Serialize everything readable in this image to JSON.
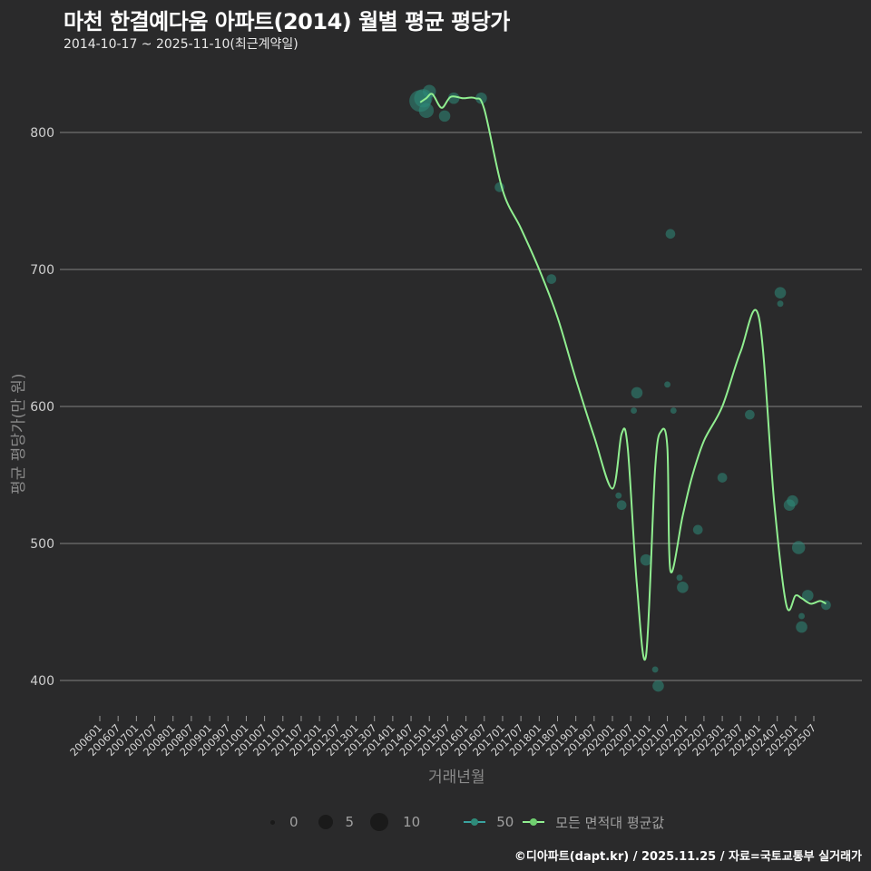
{
  "header": {
    "title": "마천 한결예다움 아파트(2014) 월별 평균 평당가",
    "subtitle": "2014-10-17 ~ 2025-11-10(최근계약일)"
  },
  "axes": {
    "ylabel": "평균 평당가(만 원)",
    "xlabel": "거래년월"
  },
  "legend": {
    "size_labels": [
      "0",
      "5",
      "10"
    ],
    "series_label_50": "50",
    "series_label_all": "모든 면적대 평균값"
  },
  "caption": "©디아파트(dapt.kr) / 2025.11.25 / 자료=국토교통부 실거래가",
  "colors": {
    "background": "#2a2a2b",
    "grid": "#707070",
    "points": "#2e8b7a",
    "line_all": "#90ee90",
    "line_50": "#3aa3a0"
  },
  "chart_data": {
    "type": "line",
    "title": "마천 한결예다움 아파트(2014) 월별 평균 평당가",
    "subtitle": "2014-10-17 ~ 2025-11-10(최근계약일)",
    "xlabel": "거래년월",
    "ylabel": "평균 평당가(만 원)",
    "ylim": [
      370,
      840
    ],
    "yticks": [
      400,
      500,
      600,
      700,
      800
    ],
    "grid": true,
    "legend_position": "bottom",
    "x_tick_labels": [
      "200601",
      "200607",
      "200701",
      "200707",
      "200801",
      "200807",
      "200901",
      "200907",
      "201001",
      "201007",
      "201101",
      "201107",
      "201201",
      "201207",
      "201301",
      "201307",
      "201401",
      "201407",
      "201501",
      "201507",
      "201601",
      "201607",
      "201701",
      "201707",
      "201801",
      "201807",
      "201901",
      "201907",
      "202001",
      "202007",
      "202101",
      "202107",
      "202201",
      "202207",
      "202301",
      "202307",
      "202401",
      "202407",
      "202501",
      "202507"
    ],
    "series": [
      {
        "name": "모든 면적대 평균값",
        "type": "line",
        "x": [
          "201410",
          "201412",
          "201502",
          "201505",
          "201508",
          "201512",
          "201604",
          "201607",
          "201701",
          "201707",
          "201801",
          "201807",
          "201901",
          "201907",
          "202001",
          "202004",
          "202006",
          "202009",
          "202012",
          "202103",
          "202105",
          "202107",
          "202108",
          "202112",
          "202203",
          "202207",
          "202301",
          "202307",
          "202401",
          "202406",
          "202410",
          "202501",
          "202503",
          "202506",
          "202509",
          "202511"
        ],
        "values": [
          822,
          825,
          828,
          818,
          826,
          825,
          825,
          817,
          758,
          730,
          700,
          665,
          620,
          578,
          540,
          580,
          570,
          470,
          418,
          555,
          582,
          570,
          480,
          520,
          548,
          575,
          600,
          640,
          665,
          530,
          455,
          462,
          460,
          456,
          458,
          456
        ]
      },
      {
        "name": "50",
        "type": "scatter",
        "points": [
          {
            "x": "201410",
            "y": 823,
            "size": 10
          },
          {
            "x": "201411",
            "y": 825,
            "size": 8
          },
          {
            "x": "201412",
            "y": 816,
            "size": 6
          },
          {
            "x": "201501",
            "y": 830,
            "size": 5
          },
          {
            "x": "201506",
            "y": 812,
            "size": 4
          },
          {
            "x": "201509",
            "y": 825,
            "size": 4
          },
          {
            "x": "201606",
            "y": 825,
            "size": 4
          },
          {
            "x": "201612",
            "y": 760,
            "size": 3
          },
          {
            "x": "201805",
            "y": 693,
            "size": 3
          },
          {
            "x": "202003",
            "y": 535,
            "size": 1
          },
          {
            "x": "202004",
            "y": 528,
            "size": 3
          },
          {
            "x": "202008",
            "y": 597,
            "size": 1
          },
          {
            "x": "202009",
            "y": 610,
            "size": 4
          },
          {
            "x": "202012",
            "y": 488,
            "size": 4
          },
          {
            "x": "202103",
            "y": 408,
            "size": 1
          },
          {
            "x": "202104",
            "y": 396,
            "size": 4
          },
          {
            "x": "202107",
            "y": 616,
            "size": 1
          },
          {
            "x": "202108",
            "y": 726,
            "size": 3
          },
          {
            "x": "202109",
            "y": 597,
            "size": 1
          },
          {
            "x": "202111",
            "y": 475,
            "size": 1
          },
          {
            "x": "202112",
            "y": 468,
            "size": 4
          },
          {
            "x": "202205",
            "y": 510,
            "size": 3
          },
          {
            "x": "202301",
            "y": 548,
            "size": 3
          },
          {
            "x": "202310",
            "y": 594,
            "size": 3
          },
          {
            "x": "202408",
            "y": 675,
            "size": 1
          },
          {
            "x": "202408",
            "y": 683,
            "size": 4
          },
          {
            "x": "202411",
            "y": 528,
            "size": 4
          },
          {
            "x": "202412",
            "y": 531,
            "size": 4
          },
          {
            "x": "202502",
            "y": 497,
            "size": 5
          },
          {
            "x": "202503",
            "y": 447,
            "size": 1
          },
          {
            "x": "202503",
            "y": 439,
            "size": 4
          },
          {
            "x": "202505",
            "y": 462,
            "size": 4
          },
          {
            "x": "202511",
            "y": 455,
            "size": 3
          }
        ]
      }
    ]
  }
}
